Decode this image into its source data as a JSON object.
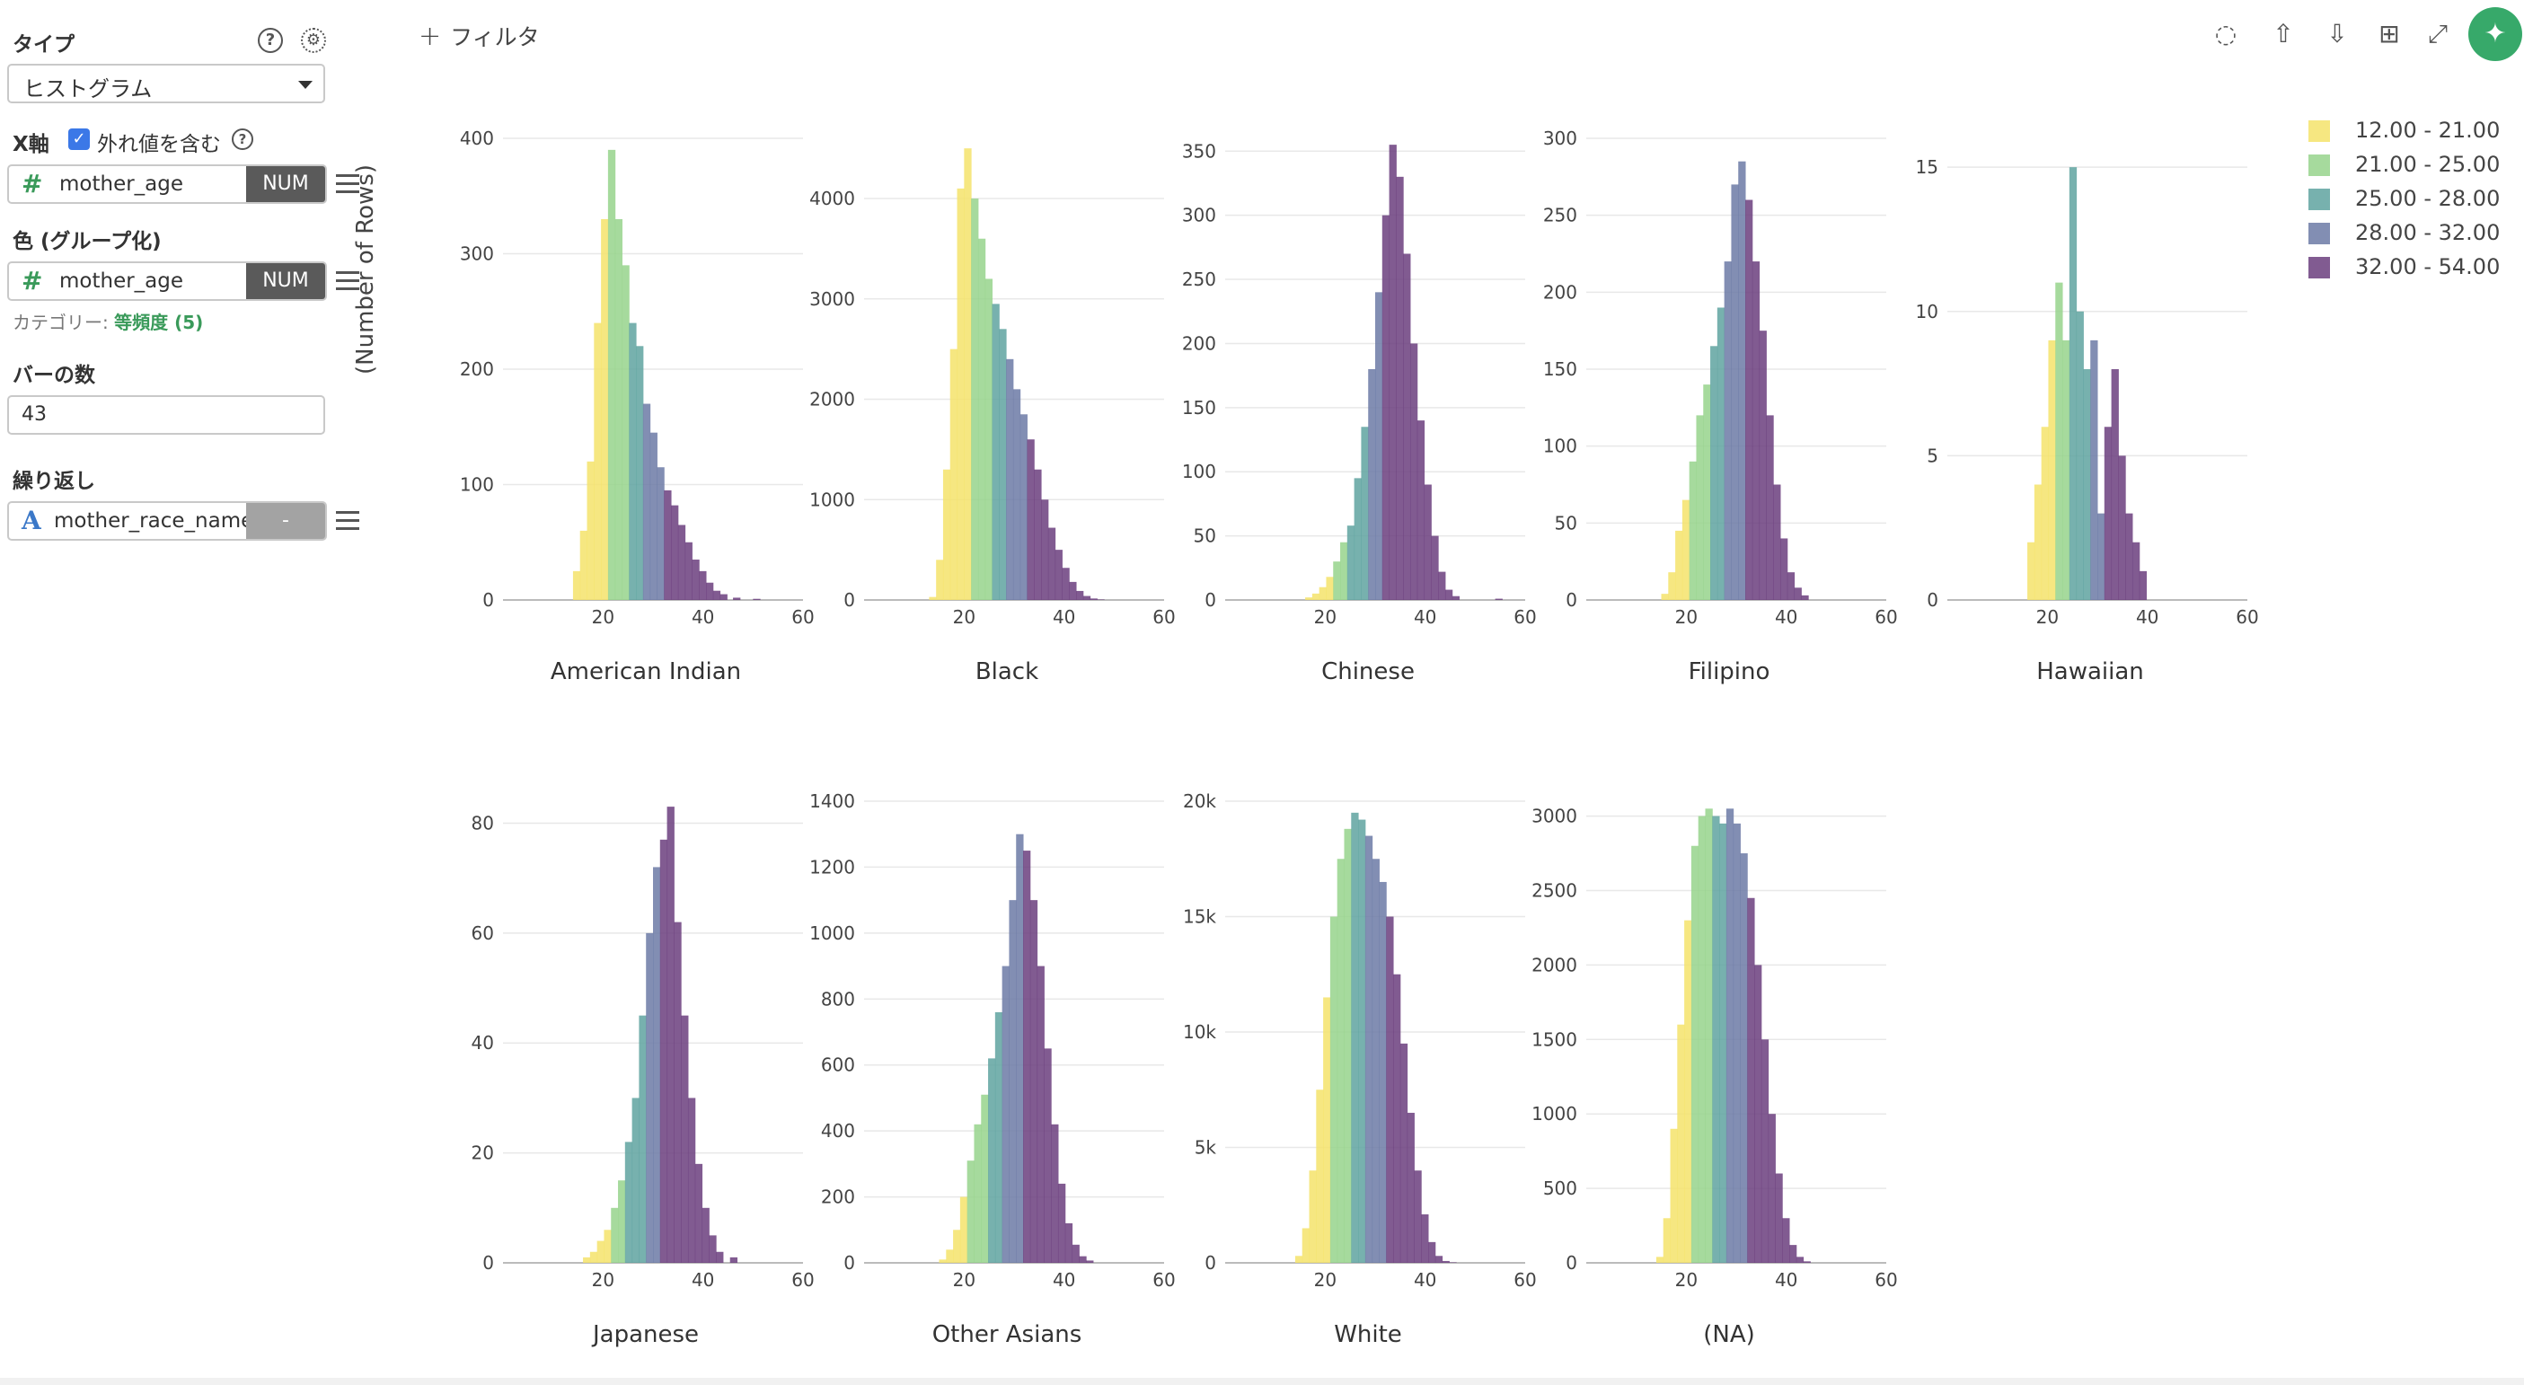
{
  "panel": {
    "type_label": "タイプ",
    "type_value": "ヒストグラム",
    "x_label": "X軸",
    "include_outliers": "外れ値を含む",
    "x_column": "mother_age",
    "x_type": "NUM",
    "color_label": "色 (グループ化)",
    "color_column": "mother_age",
    "color_type": "NUM",
    "category_prefix": "カテゴリー:",
    "category_value": "等頻度 (5)",
    "bins_label": "バーの数",
    "bins_value": "43",
    "repeat_label": "繰り返し",
    "repeat_column": "mother_race_name",
    "repeat_type": "-"
  },
  "toolbar": {
    "filter_label": "フィルタ",
    "icons": [
      "comment-icon",
      "upload-icon",
      "download-icon",
      "table-icon",
      "expand-icon",
      "pin-icon"
    ]
  },
  "legend": {
    "items": [
      {
        "label": "12.00 - 21.00",
        "color": "#f4e36b"
      },
      {
        "label": "21.00 - 25.00",
        "color": "#96d38c"
      },
      {
        "label": "25.00 - 28.00",
        "color": "#5fa3a0"
      },
      {
        "label": "28.00 - 32.00",
        "color": "#6c7aa6"
      },
      {
        "label": "32.00 - 54.00",
        "color": "#6b3e7e"
      }
    ]
  },
  "chart_data": {
    "type": "bar",
    "subtype": "histogram-small-multiples",
    "ylabel": "(Number of Rows)",
    "xlabel": "",
    "xlim": [
      0,
      60
    ],
    "x_ticks": [
      20,
      40,
      60
    ],
    "bin_width": 1.4,
    "legend_placement": "right",
    "grid": true,
    "color_groups": [
      "12.00 - 21.00",
      "21.00 - 25.00",
      "25.00 - 28.00",
      "28.00 - 32.00",
      "32.00 - 54.00"
    ],
    "group_breaks": [
      12,
      21,
      25,
      28,
      32,
      54
    ],
    "panels": [
      {
        "name": "American Indian",
        "ymax": 400,
        "y_ticks": [
          0,
          100,
          200,
          300,
          400
        ],
        "y_tick_labels": [
          "0",
          "100",
          "200",
          "300",
          "400"
        ],
        "bins": [
          [
            14,
            25
          ],
          [
            15.4,
            60
          ],
          [
            16.8,
            120
          ],
          [
            18.2,
            240
          ],
          [
            19.6,
            330
          ],
          [
            21,
            390
          ],
          [
            22.4,
            330
          ],
          [
            23.8,
            290
          ],
          [
            25.2,
            240
          ],
          [
            26.6,
            220
          ],
          [
            28,
            170
          ],
          [
            29.4,
            145
          ],
          [
            30.8,
            115
          ],
          [
            32.2,
            95
          ],
          [
            33.6,
            82
          ],
          [
            35,
            65
          ],
          [
            36.4,
            50
          ],
          [
            37.8,
            35
          ],
          [
            39.2,
            25
          ],
          [
            40.6,
            15
          ],
          [
            42,
            8
          ],
          [
            43.4,
            5
          ],
          [
            46,
            2
          ],
          [
            50,
            1
          ]
        ]
      },
      {
        "name": "Black",
        "ymax": 4600,
        "y_ticks": [
          0,
          1000,
          2000,
          3000,
          4000
        ],
        "y_tick_labels": [
          "0",
          "1000",
          "2000",
          "3000",
          "4000"
        ],
        "bins": [
          [
            13,
            30
          ],
          [
            14.4,
            400
          ],
          [
            15.8,
            1300
          ],
          [
            17.2,
            2500
          ],
          [
            18.6,
            4100
          ],
          [
            20,
            4500
          ],
          [
            21.4,
            4000
          ],
          [
            22.8,
            3600
          ],
          [
            24.2,
            3200
          ],
          [
            25.6,
            2950
          ],
          [
            27,
            2700
          ],
          [
            28.4,
            2400
          ],
          [
            29.8,
            2100
          ],
          [
            31.2,
            1850
          ],
          [
            32.6,
            1600
          ],
          [
            34,
            1300
          ],
          [
            35.4,
            1000
          ],
          [
            36.8,
            720
          ],
          [
            38.2,
            500
          ],
          [
            39.6,
            320
          ],
          [
            41,
            180
          ],
          [
            42.4,
            90
          ],
          [
            43.8,
            40
          ],
          [
            45.2,
            15
          ],
          [
            46.6,
            5
          ]
        ]
      },
      {
        "name": "Chinese",
        "ymax": 360,
        "y_ticks": [
          0,
          50,
          100,
          150,
          200,
          250,
          300,
          350
        ],
        "y_tick_labels": [
          "0",
          "50",
          "100",
          "150",
          "200",
          "250",
          "300",
          "350"
        ],
        "bins": [
          [
            16,
            2
          ],
          [
            17.4,
            5
          ],
          [
            18.8,
            10
          ],
          [
            20.2,
            18
          ],
          [
            21.6,
            30
          ],
          [
            23,
            45
          ],
          [
            24.4,
            58
          ],
          [
            25.8,
            95
          ],
          [
            27.2,
            135
          ],
          [
            28.6,
            180
          ],
          [
            30,
            240
          ],
          [
            31.4,
            300
          ],
          [
            32.8,
            355
          ],
          [
            34.2,
            330
          ],
          [
            35.6,
            270
          ],
          [
            37,
            200
          ],
          [
            38.4,
            140
          ],
          [
            39.8,
            90
          ],
          [
            41.2,
            50
          ],
          [
            42.6,
            22
          ],
          [
            44,
            8
          ],
          [
            45.4,
            3
          ],
          [
            54,
            1
          ]
        ]
      },
      {
        "name": "Filipino",
        "ymax": 300,
        "y_ticks": [
          0,
          50,
          100,
          150,
          200,
          250,
          300
        ],
        "y_tick_labels": [
          "0",
          "50",
          "100",
          "150",
          "200",
          "250",
          "300"
        ],
        "bins": [
          [
            15,
            4
          ],
          [
            16.4,
            18
          ],
          [
            17.8,
            45
          ],
          [
            19.2,
            65
          ],
          [
            20.6,
            90
          ],
          [
            22,
            120
          ],
          [
            23.4,
            140
          ],
          [
            24.8,
            165
          ],
          [
            26.2,
            190
          ],
          [
            27.6,
            220
          ],
          [
            29,
            270
          ],
          [
            30.4,
            285
          ],
          [
            31.8,
            260
          ],
          [
            33.2,
            220
          ],
          [
            34.6,
            175
          ],
          [
            36,
            120
          ],
          [
            37.4,
            75
          ],
          [
            38.8,
            40
          ],
          [
            40.2,
            18
          ],
          [
            41.6,
            8
          ],
          [
            43,
            3
          ]
        ]
      },
      {
        "name": "Hawaiian",
        "ymax": 16,
        "y_ticks": [
          0,
          5,
          10,
          15
        ],
        "y_tick_labels": [
          "0",
          "5",
          "10",
          "15"
        ],
        "bins": [
          [
            16,
            2
          ],
          [
            17.4,
            4
          ],
          [
            18.8,
            6
          ],
          [
            20.2,
            9
          ],
          [
            21.6,
            11
          ],
          [
            23,
            9
          ],
          [
            24.4,
            15
          ],
          [
            25.8,
            10
          ],
          [
            27.2,
            8
          ],
          [
            28.6,
            9
          ],
          [
            30,
            3
          ],
          [
            31.4,
            6
          ],
          [
            32.8,
            8
          ],
          [
            34.2,
            5
          ],
          [
            35.6,
            3
          ],
          [
            37,
            2
          ],
          [
            38.4,
            1
          ]
        ]
      },
      {
        "name": "Japanese",
        "ymax": 84,
        "y_ticks": [
          0,
          20,
          40,
          60,
          80
        ],
        "y_tick_labels": [
          "0",
          "20",
          "40",
          "60",
          "80"
        ],
        "bins": [
          [
            16,
            1
          ],
          [
            17.4,
            2
          ],
          [
            18.8,
            4
          ],
          [
            20.2,
            6
          ],
          [
            21.6,
            10
          ],
          [
            23,
            15
          ],
          [
            24.4,
            22
          ],
          [
            25.8,
            30
          ],
          [
            27.2,
            45
          ],
          [
            28.6,
            60
          ],
          [
            30,
            72
          ],
          [
            31.4,
            77
          ],
          [
            32.8,
            83
          ],
          [
            34.2,
            62
          ],
          [
            35.6,
            45
          ],
          [
            37,
            30
          ],
          [
            38.4,
            18
          ],
          [
            39.8,
            10
          ],
          [
            41.2,
            5
          ],
          [
            42.6,
            2
          ],
          [
            45.4,
            1
          ]
        ]
      },
      {
        "name": "Other Asians",
        "ymax": 1400,
        "y_ticks": [
          0,
          200,
          400,
          600,
          800,
          1000,
          1200,
          1400
        ],
        "y_tick_labels": [
          "0",
          "200",
          "400",
          "600",
          "800",
          "1000",
          "1200",
          "1400"
        ],
        "bins": [
          [
            15,
            10
          ],
          [
            16.4,
            40
          ],
          [
            17.8,
            100
          ],
          [
            19.2,
            200
          ],
          [
            20.6,
            310
          ],
          [
            22,
            420
          ],
          [
            23.4,
            510
          ],
          [
            24.8,
            620
          ],
          [
            26.2,
            760
          ],
          [
            27.6,
            900
          ],
          [
            29,
            1100
          ],
          [
            30.4,
            1300
          ],
          [
            31.8,
            1250
          ],
          [
            33.2,
            1100
          ],
          [
            34.6,
            900
          ],
          [
            36,
            650
          ],
          [
            37.4,
            420
          ],
          [
            38.8,
            240
          ],
          [
            40.2,
            120
          ],
          [
            41.6,
            55
          ],
          [
            43,
            20
          ],
          [
            44.4,
            7
          ]
        ]
      },
      {
        "name": "White",
        "ymax": 20000,
        "y_ticks": [
          0,
          5000,
          10000,
          15000,
          20000
        ],
        "y_tick_labels": [
          "0",
          "5k",
          "10k",
          "15k",
          "20k"
        ],
        "bins": [
          [
            14,
            300
          ],
          [
            15.4,
            1500
          ],
          [
            16.8,
            4000
          ],
          [
            18.2,
            7500
          ],
          [
            19.6,
            11500
          ],
          [
            21,
            15000
          ],
          [
            22.4,
            17500
          ],
          [
            23.8,
            18800
          ],
          [
            25.2,
            19500
          ],
          [
            26.6,
            19200
          ],
          [
            28,
            18500
          ],
          [
            29.4,
            17500
          ],
          [
            30.8,
            16500
          ],
          [
            32.2,
            15000
          ],
          [
            33.6,
            12500
          ],
          [
            35,
            9500
          ],
          [
            36.4,
            6500
          ],
          [
            37.8,
            4000
          ],
          [
            39.2,
            2100
          ],
          [
            40.6,
            900
          ],
          [
            42,
            300
          ],
          [
            43.4,
            80
          ],
          [
            44.8,
            20
          ]
        ]
      },
      {
        "name": "(NA)",
        "ymax": 3100,
        "y_ticks": [
          0,
          500,
          1000,
          1500,
          2000,
          2500,
          3000
        ],
        "y_tick_labels": [
          "0",
          "500",
          "1000",
          "1500",
          "2000",
          "2500",
          "3000"
        ],
        "bins": [
          [
            14,
            40
          ],
          [
            15.4,
            300
          ],
          [
            16.8,
            900
          ],
          [
            18.2,
            1600
          ],
          [
            19.6,
            2300
          ],
          [
            21,
            2800
          ],
          [
            22.4,
            3000
          ],
          [
            23.8,
            3050
          ],
          [
            25.2,
            3000
          ],
          [
            26.6,
            2950
          ],
          [
            28,
            3050
          ],
          [
            29.4,
            2950
          ],
          [
            30.8,
            2750
          ],
          [
            32.2,
            2450
          ],
          [
            33.6,
            2000
          ],
          [
            35,
            1500
          ],
          [
            36.4,
            1000
          ],
          [
            37.8,
            600
          ],
          [
            39.2,
            300
          ],
          [
            40.6,
            120
          ],
          [
            42,
            40
          ],
          [
            43.4,
            10
          ]
        ]
      }
    ]
  }
}
